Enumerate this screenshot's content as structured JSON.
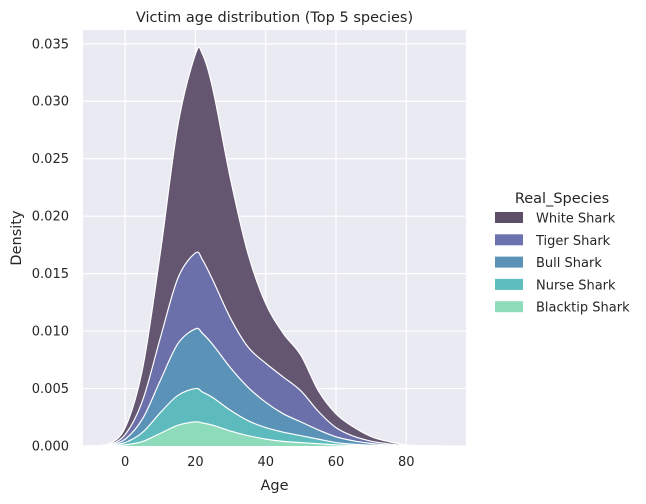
{
  "chart_data": {
    "type": "area",
    "title": "Victim age distribution (Top 5 species)",
    "xlabel": "Age",
    "ylabel": "Density",
    "xlim": [
      -12,
      97
    ],
    "ylim": [
      0,
      0.0362
    ],
    "xticks": [
      0,
      20,
      40,
      60,
      80
    ],
    "xtick_labels": [
      "0",
      "20",
      "40",
      "60",
      "80"
    ],
    "yticks": [
      0,
      0.005,
      0.01,
      0.015,
      0.02,
      0.025,
      0.03,
      0.035
    ],
    "ytick_labels": [
      "0.000",
      "0.005",
      "0.010",
      "0.015",
      "0.020",
      "0.025",
      "0.030",
      "0.035"
    ],
    "grid": true,
    "stacked": true,
    "legend": {
      "title": "Real_Species",
      "position": "right"
    },
    "x": [
      -10,
      -5,
      0,
      5,
      10,
      15,
      20,
      22,
      25,
      30,
      35,
      40,
      45,
      50,
      55,
      60,
      65,
      70,
      75,
      80,
      85,
      90
    ],
    "series": [
      {
        "name": "Blacktip Shark",
        "color": "#8fdcbb",
        "values": [
          0,
          1e-05,
          0.0001,
          0.0004,
          0.0011,
          0.0018,
          0.0021,
          0.002,
          0.0018,
          0.0013,
          0.0009,
          0.0006,
          0.0004,
          0.0003,
          0.0002,
          0.0001,
          5e-05,
          2e-05,
          1e-05,
          0,
          0,
          0
        ]
      },
      {
        "name": "Nurse Shark",
        "color": "#5ebdbd",
        "values": [
          0,
          2e-05,
          0.0002,
          0.0008,
          0.0018,
          0.0026,
          0.0029,
          0.0027,
          0.0024,
          0.0018,
          0.0013,
          0.001,
          0.0008,
          0.0006,
          0.0004,
          0.0002,
          0.0001,
          5e-05,
          2e-05,
          0,
          0,
          0
        ]
      },
      {
        "name": "Bull Shark",
        "color": "#5b93b8",
        "values": [
          0,
          3e-05,
          0.0003,
          0.0012,
          0.0028,
          0.0045,
          0.0052,
          0.0051,
          0.0046,
          0.0037,
          0.0029,
          0.0022,
          0.0016,
          0.0012,
          0.0008,
          0.0005,
          0.0003,
          0.00015,
          5e-05,
          2e-05,
          0,
          0
        ]
      },
      {
        "name": "Tiger Shark",
        "color": "#6b72ad",
        "values": [
          0,
          4e-05,
          0.0004,
          0.0016,
          0.0037,
          0.0057,
          0.0066,
          0.0064,
          0.0056,
          0.0043,
          0.0035,
          0.0034,
          0.0032,
          0.0027,
          0.0016,
          0.0008,
          0.0004,
          0.0002,
          0.0001,
          3e-05,
          0,
          0
        ]
      },
      {
        "name": "White Shark",
        "color": "#5d4e69",
        "values": [
          0,
          5e-05,
          0.0006,
          0.0028,
          0.0074,
          0.0133,
          0.0173,
          0.0179,
          0.0166,
          0.0121,
          0.0081,
          0.0052,
          0.0038,
          0.0031,
          0.0018,
          0.0012,
          0.0008,
          0.0004,
          0.0002,
          5e-05,
          1e-05,
          0
        ]
      }
    ],
    "legend_order": [
      "White Shark",
      "Tiger Shark",
      "Bull Shark",
      "Nurse Shark",
      "Blacktip Shark"
    ]
  }
}
